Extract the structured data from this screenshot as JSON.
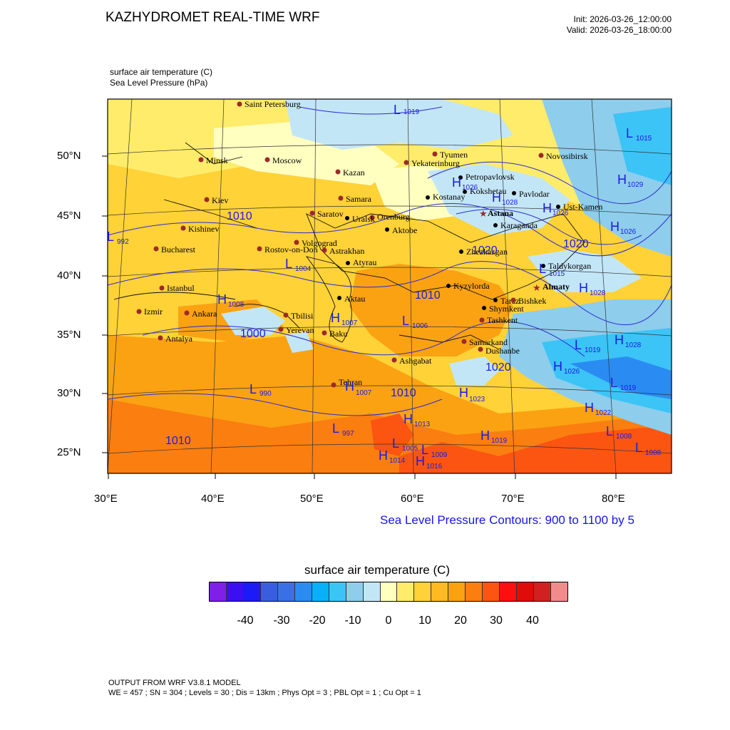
{
  "header": {
    "title": "KAZHYDROMET REAL-TIME WRF",
    "init": "Init: 2026-03-26_12:00:00",
    "valid": "Valid: 2026-03-26_18:00:00",
    "field1": "surface air temperature   (C)",
    "field2": "Sea Level Pressure   (hPa)"
  },
  "axes": {
    "lat_labels": [
      "50°N",
      "45°N",
      "40°N",
      "35°N",
      "30°N",
      "25°N"
    ],
    "lon_labels": [
      "30°E",
      "40°E",
      "50°E",
      "60°E",
      "70°E",
      "80°E"
    ]
  },
  "map": {
    "cities": [
      {
        "name": "Saint Petersburg",
        "color": "#9c2a2a"
      },
      {
        "name": "Minsk",
        "color": "#9c2a2a"
      },
      {
        "name": "Moscow",
        "color": "#9c2a2a"
      },
      {
        "name": "Kazan",
        "color": "#9c2a2a"
      },
      {
        "name": "Tyumen",
        "color": "#9c2a2a"
      },
      {
        "name": "Yekaterinburg",
        "color": "#9c2a2a"
      },
      {
        "name": "Novosibirsk",
        "color": "#9c2a2a"
      },
      {
        "name": "Kiev",
        "color": "#9c2a2a"
      },
      {
        "name": "Samara",
        "color": "#9c2a2a"
      },
      {
        "name": "Saratov",
        "color": "#9c2a2a"
      },
      {
        "name": "Orenburg",
        "color": "#9c2a2a"
      },
      {
        "name": "Uralsk",
        "color": "#000000"
      },
      {
        "name": "Aktobe",
        "color": "#000000"
      },
      {
        "name": "Petropavlovsk",
        "color": "#000000"
      },
      {
        "name": "Kostanay",
        "color": "#000000"
      },
      {
        "name": "Kokshetau",
        "color": "#000000"
      },
      {
        "name": "Pavlodar",
        "color": "#000000"
      },
      {
        "name": "Ust-Kamen",
        "color": "#000000"
      },
      {
        "name": "Astana",
        "color": "#9c2a2a"
      },
      {
        "name": "Karaganda",
        "color": "#000000"
      },
      {
        "name": "Kishinev",
        "color": "#9c2a2a"
      },
      {
        "name": "Bucharest",
        "color": "#9c2a2a"
      },
      {
        "name": "Rostov-on-Don",
        "color": "#9c2a2a"
      },
      {
        "name": "Volgograd",
        "color": "#9c2a2a"
      },
      {
        "name": "Astrakhan",
        "color": "#9c2a2a"
      },
      {
        "name": "Atyrau",
        "color": "#000000"
      },
      {
        "name": "Zhezkazgan",
        "color": "#000000"
      },
      {
        "name": "Taldykorgan",
        "color": "#000000"
      },
      {
        "name": "Istanbul",
        "color": "#9c2a2a"
      },
      {
        "name": "Aktau",
        "color": "#000000"
      },
      {
        "name": "Kyzylorda",
        "color": "#000000"
      },
      {
        "name": "Almaty",
        "color": "#9c2a2a"
      },
      {
        "name": "Taraz",
        "color": "#000000"
      },
      {
        "name": "Bishkek",
        "color": "#9c2a2a"
      },
      {
        "name": "Shymkent",
        "color": "#000000"
      },
      {
        "name": "Izmir",
        "color": "#9c2a2a"
      },
      {
        "name": "Ankara",
        "color": "#9c2a2a"
      },
      {
        "name": "Tbilisi",
        "color": "#9c2a2a"
      },
      {
        "name": "Yerevan",
        "color": "#9c2a2a"
      },
      {
        "name": "Baku",
        "color": "#9c2a2a"
      },
      {
        "name": "Tashkent",
        "color": "#9c2a2a"
      },
      {
        "name": "Samarkand",
        "color": "#9c2a2a"
      },
      {
        "name": "Dushanbe",
        "color": "#9c2a2a"
      },
      {
        "name": "Antalya",
        "color": "#9c2a2a"
      },
      {
        "name": "Ashgabat",
        "color": "#9c2a2a"
      },
      {
        "name": "Tehran",
        "color": "#9c2a2a"
      }
    ],
    "pressure_centers": [
      {
        "mark": "L",
        "value": "1019"
      },
      {
        "mark": "L",
        "value": "1015"
      },
      {
        "mark": "H",
        "value": "1026"
      },
      {
        "mark": "H",
        "value": "1029"
      },
      {
        "mark": "H",
        "value": "1028"
      },
      {
        "mark": "H",
        "value": "1026"
      },
      {
        "mark": "H",
        "value": "1026"
      },
      {
        "mark": "L",
        "value": "992"
      },
      {
        "mark": "L",
        "value": "1004"
      },
      {
        "mark": "L",
        "value": "1015"
      },
      {
        "mark": "H",
        "value": "1008"
      },
      {
        "mark": "H",
        "value": "1007"
      },
      {
        "mark": "L",
        "value": "1006"
      },
      {
        "mark": "H",
        "value": "1028"
      },
      {
        "mark": "L",
        "value": "1019"
      },
      {
        "mark": "H",
        "value": "1028"
      },
      {
        "mark": "H",
        "value": "1026"
      },
      {
        "mark": "L",
        "value": "1019"
      },
      {
        "mark": "L",
        "value": "990"
      },
      {
        "mark": "H",
        "value": "1007"
      },
      {
        "mark": "H",
        "value": "1023"
      },
      {
        "mark": "H",
        "value": "1013"
      },
      {
        "mark": "L",
        "value": "997"
      },
      {
        "mark": "H",
        "value": "1019"
      },
      {
        "mark": "L",
        "value": "1005"
      },
      {
        "mark": "L",
        "value": "1009"
      },
      {
        "mark": "H",
        "value": "1014"
      },
      {
        "mark": "H",
        "value": "1016"
      },
      {
        "mark": "L",
        "value": "1008"
      },
      {
        "mark": "L",
        "value": "1008"
      },
      {
        "mark": "H",
        "value": "1022"
      }
    ],
    "isobar_labels": [
      "1010",
      "1020",
      "1010",
      "1000",
      "1020",
      "1010",
      "1010",
      "1020"
    ]
  },
  "slp_note": "Sea Level Pressure Contours: 900 to 1100 by 5",
  "colorbar": {
    "title": "surface air temperature  (C)",
    "colors": [
      "#7f1fe8",
      "#3a10f0",
      "#1b1bf5",
      "#3a5de0",
      "#3b6fe6",
      "#2a8cf3",
      "#08b0fa",
      "#3cc4f6",
      "#8ecdec",
      "#c3e6f7",
      "#ffffc0",
      "#ffec6a",
      "#ffd237",
      "#fdba22",
      "#fba213",
      "#fb7e10",
      "#fb5511",
      "#fb0f0f",
      "#e00b0b",
      "#d22020",
      "#f28c8c"
    ],
    "ticks": [
      "-40",
      "-30",
      "-20",
      "-10",
      "0",
      "10",
      "20",
      "30",
      "40"
    ]
  },
  "footer": {
    "line1": "OUTPUT FROM WRF V3.8.1 MODEL",
    "line2": "WE = 457 ; SN = 304 ; Levels = 30 ; Dis = 13km ; Phys Opt = 3 ; PBL Opt = 1 ; Cu Opt = 1"
  }
}
